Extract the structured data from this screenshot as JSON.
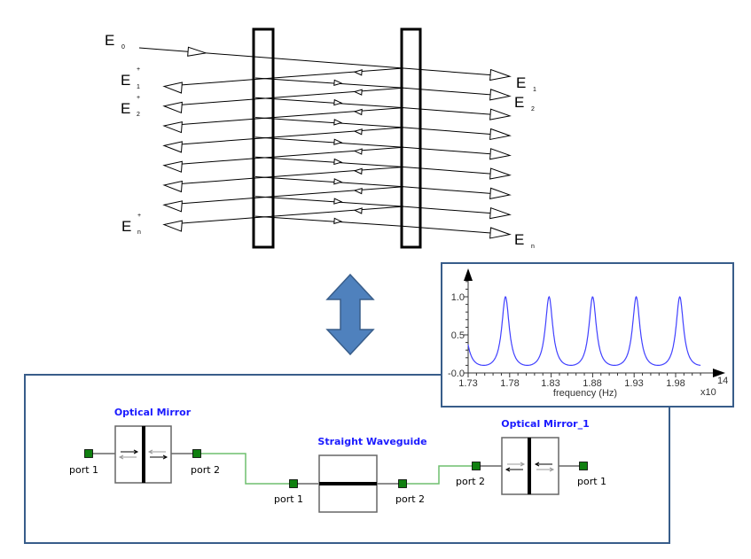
{
  "ray_diagram": {
    "input_label": {
      "main": "E",
      "sub": "0"
    },
    "reflected_labels": [
      {
        "main": "E",
        "sub": "1",
        "sup": "+"
      },
      {
        "main": "E",
        "sub": "2",
        "sup": "+"
      },
      {
        "main": "E",
        "sub": "n",
        "sup": "+"
      }
    ],
    "transmitted_labels": [
      {
        "main": "E",
        "sub": "1"
      },
      {
        "main": "E",
        "sub": "2"
      },
      {
        "main": "E",
        "sub": "n"
      }
    ],
    "bounce_count": 8
  },
  "equivalence_arrow": {
    "icon": "double-arrow-vertical-icon",
    "color": "#4f81bd"
  },
  "schematic": {
    "border_color": "#385d8a",
    "wire_color": "#6fbf6f",
    "port_color": "#108010",
    "title_color": "#1a1aff",
    "components": [
      {
        "title": "Optical Mirror",
        "left_port": "port 1",
        "right_port": "port 2"
      },
      {
        "title": "Straight Waveguide",
        "left_port": "port 1",
        "right_port": "port 2"
      },
      {
        "title": "Optical Mirror_1",
        "left_port": "port 2",
        "right_port": "port 1"
      }
    ]
  },
  "chart_data": {
    "type": "line",
    "title": "",
    "xlabel": "frequency (Hz)",
    "x_multiplier": "x10",
    "x_multiplier_exp": "14",
    "ylabel": "",
    "xlim": [
      1.73,
      2.01
    ],
    "ylim": [
      0.0,
      1.0
    ],
    "x_ticks": [
      "1.73",
      "1.78",
      "1.83",
      "1.88",
      "1.93",
      "1.98"
    ],
    "y_ticks": [
      "-0.0",
      "0.5",
      "1.0"
    ],
    "grid": false,
    "line_color": "#4040ff",
    "series": [
      {
        "peaks_x": [
          1.775,
          1.827,
          1.879,
          1.932,
          1.985
        ],
        "peak_y": 1.0,
        "min_y": 0.1,
        "start_y": 0.33
      }
    ]
  }
}
